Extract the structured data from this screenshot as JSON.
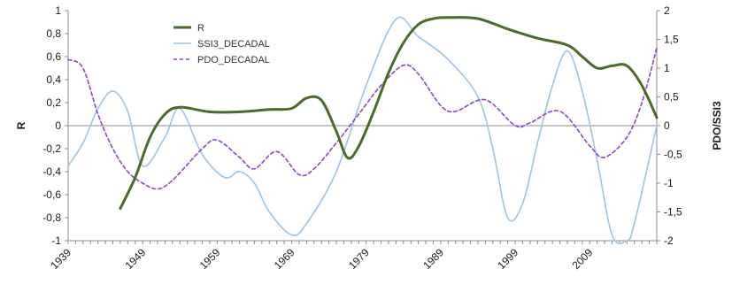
{
  "chart_data": {
    "type": "line",
    "title": "",
    "xlabel": "",
    "ylabel": "R",
    "y2label": "PDO/SSI3",
    "xlim": [
      1939,
      2018
    ],
    "ylim": [
      -1,
      1
    ],
    "y2lim": [
      -2,
      2
    ],
    "grid": false,
    "legend_position": "top-center",
    "x_tick_labels": [
      "1939",
      "1949",
      "1959",
      "1969",
      "1979",
      "1989",
      "1999",
      "2009"
    ],
    "x_tick_values": [
      1939,
      1949,
      1959,
      1969,
      1979,
      1989,
      1999,
      2009
    ],
    "y_tick_labels": [
      "-1",
      "-0,8",
      "-0,6",
      "-0,4",
      "-0,2",
      "0",
      "0,2",
      "0,4",
      "0,6",
      "0,8",
      "1"
    ],
    "y_tick_values": [
      -1,
      -0.8,
      -0.6,
      -0.4,
      -0.2,
      0,
      0.2,
      0.4,
      0.6,
      0.8,
      1
    ],
    "y2_tick_labels": [
      "-2",
      "-1,5",
      "-1",
      "-0,5",
      "0",
      "0,5",
      "1",
      "1,5",
      "2"
    ],
    "y2_tick_values": [
      -2,
      -1.5,
      -1,
      -0.5,
      0,
      0.5,
      1,
      1.5,
      2
    ],
    "series": [
      {
        "name": "R",
        "axis": "left",
        "color": "#4a6b2a",
        "dash": "solid",
        "x": [
          1946,
          1948,
          1950,
          1952,
          1954,
          1958,
          1962,
          1966,
          1969,
          1971,
          1973,
          1975,
          1976.5,
          1978,
          1980,
          1982,
          1984,
          1986,
          1988,
          1990,
          1994,
          1998,
          2002,
          2006,
          2008,
          2010,
          2012,
          2014,
          2016,
          2018
        ],
        "y": [
          -0.72,
          -0.45,
          -0.1,
          0.1,
          0.16,
          0.12,
          0.12,
          0.14,
          0.15,
          0.24,
          0.22,
          -0.05,
          -0.28,
          -0.18,
          0.12,
          0.46,
          0.72,
          0.88,
          0.93,
          0.94,
          0.93,
          0.84,
          0.76,
          0.7,
          0.6,
          0.5,
          0.52,
          0.52,
          0.35,
          0.07
        ]
      },
      {
        "name": "SSI3_DECADAL",
        "axis": "right",
        "color": "#9cc3e6",
        "dash": "solid",
        "x": [
          1939,
          1941,
          1943,
          1945,
          1947,
          1949,
          1952,
          1954,
          1957,
          1960,
          1962,
          1964,
          1966,
          1969,
          1971,
          1975,
          1979,
          1983,
          1986,
          1990,
          1994,
          1996,
          1998,
          2000,
          2002,
          2004,
          2006,
          2008,
          2010,
          2012,
          2014,
          2015,
          2018
        ],
        "y": [
          -0.7,
          -0.3,
          0.3,
          0.6,
          0.25,
          -0.7,
          -0.2,
          0.3,
          -0.5,
          -0.9,
          -0.8,
          -1.0,
          -1.5,
          -1.9,
          -1.7,
          -0.8,
          0.7,
          1.85,
          1.55,
          1.15,
          0.5,
          -0.4,
          -1.6,
          -1.35,
          -0.3,
          0.7,
          1.3,
          0.6,
          -0.6,
          -1.9,
          -2.0,
          -1.7,
          0.0
        ]
      },
      {
        "name": "PDO_DECADAL",
        "axis": "right",
        "color": "#8e44c8",
        "dash": "4,3",
        "x": [
          1939,
          1941,
          1943,
          1945,
          1947,
          1949,
          1951,
          1953,
          1957,
          1959,
          1962,
          1964,
          1967,
          1970,
          1972,
          1975,
          1978,
          1981,
          1984,
          1986,
          1989,
          1991,
          1995,
          1999,
          2001,
          2005,
          2009,
          2011,
          2014,
          2016,
          2018
        ],
        "y": [
          1.15,
          1.0,
          0.2,
          -0.4,
          -0.8,
          -1.0,
          -1.1,
          -0.95,
          -0.4,
          -0.25,
          -0.55,
          -0.75,
          -0.45,
          -0.85,
          -0.75,
          -0.3,
          0.2,
          0.7,
          1.05,
          0.9,
          0.35,
          0.25,
          0.45,
          0.0,
          0.05,
          0.25,
          -0.35,
          -0.55,
          -0.2,
          0.4,
          1.35
        ]
      }
    ]
  }
}
